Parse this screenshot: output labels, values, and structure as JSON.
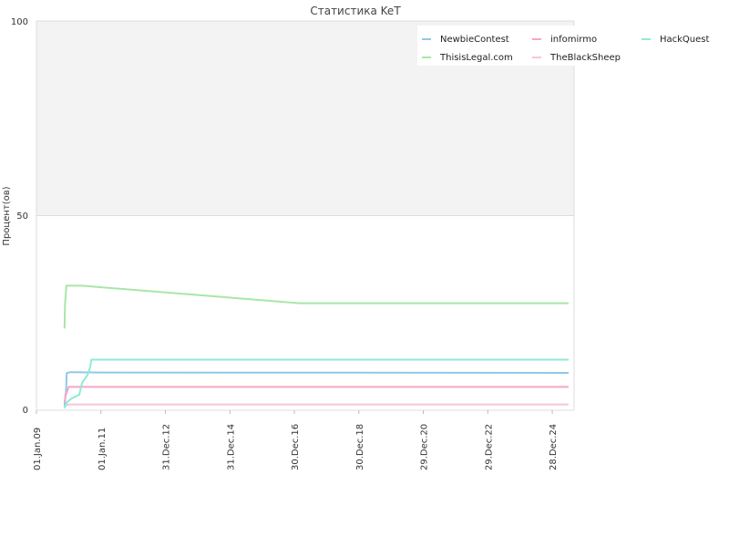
{
  "chart_data": {
    "type": "line",
    "title": "Статистика KeT",
    "xlabel": "",
    "ylabel": "Процент(ов)",
    "ylim": [
      0,
      100
    ],
    "yticks": [
      "0",
      "50",
      "100"
    ],
    "xlim": [
      "2009-01-01",
      "2025-09-01"
    ],
    "xticks": [
      {
        "date": "2009-01-01",
        "label": "01.Jan.09"
      },
      {
        "date": "2011-01-01",
        "label": "01.Jan.11"
      },
      {
        "date": "2012-12-31",
        "label": "31.Dec.12"
      },
      {
        "date": "2014-12-31",
        "label": "31.Dec.14"
      },
      {
        "date": "2016-12-30",
        "label": "30.Dec.16"
      },
      {
        "date": "2018-12-30",
        "label": "30.Dec.18"
      },
      {
        "date": "2020-12-29",
        "label": "29.Dec.20"
      },
      {
        "date": "2022-12-29",
        "label": "29.Dec.22"
      },
      {
        "date": "2024-12-28",
        "label": "28.Dec.24"
      }
    ],
    "grid": true,
    "legend_position": "top-right",
    "series": [
      {
        "name": "NewbieContest",
        "color": "#8ec9e8",
        "points": [
          [
            "2009-11-15",
            1
          ],
          [
            "2009-11-25",
            4
          ],
          [
            "2009-12-01",
            4.5
          ],
          [
            "2009-12-10",
            9.5
          ],
          [
            "2010-01-15",
            9.8
          ],
          [
            "2011-01-01",
            9.7
          ],
          [
            "2025-07-01",
            9.6
          ]
        ]
      },
      {
        "name": "ThisisLegal.com",
        "color": "#a8e6a8",
        "points": [
          [
            "2009-11-15",
            21
          ],
          [
            "2009-11-20",
            27
          ],
          [
            "2009-12-05",
            32
          ],
          [
            "2010-06-01",
            32
          ],
          [
            "2017-03-01",
            27.5
          ],
          [
            "2025-07-01",
            27.5
          ]
        ]
      },
      {
        "name": "infomirmo",
        "color": "#f4a6c8",
        "points": [
          [
            "2009-11-15",
            2
          ],
          [
            "2009-12-01",
            4
          ],
          [
            "2010-01-01",
            6
          ],
          [
            "2025-07-01",
            6
          ]
        ]
      },
      {
        "name": "TheBlackSheep",
        "color": "#f7c5d2",
        "points": [
          [
            "2009-11-15",
            1
          ],
          [
            "2009-12-20",
            1.5
          ],
          [
            "2025-07-01",
            1.5
          ]
        ]
      },
      {
        "name": "HackQuest",
        "color": "#90ead5",
        "points": [
          [
            "2009-11-15",
            0.5
          ],
          [
            "2009-12-10",
            2
          ],
          [
            "2010-02-01",
            3
          ],
          [
            "2010-05-01",
            4
          ],
          [
            "2010-06-01",
            7
          ],
          [
            "2010-08-01",
            9
          ],
          [
            "2010-09-01",
            11
          ],
          [
            "2010-09-15",
            13
          ],
          [
            "2025-07-01",
            13
          ]
        ]
      }
    ]
  }
}
